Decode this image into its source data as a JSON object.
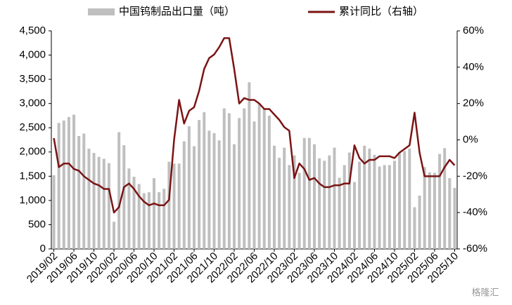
{
  "chart_data": {
    "type": "bar-line",
    "categories": [
      "2019/02",
      null,
      null,
      null,
      "2019/06",
      null,
      null,
      null,
      "2019/10",
      null,
      null,
      null,
      "2020/02",
      null,
      null,
      null,
      "2020/06",
      null,
      null,
      null,
      "2020/10",
      null,
      null,
      null,
      "2021/02",
      null,
      null,
      null,
      "2021/06",
      null,
      null,
      null,
      "2021/10",
      null,
      null,
      null,
      "2022/02",
      null,
      null,
      null,
      "2022/06",
      null,
      null,
      null,
      "2022/10",
      null,
      null,
      null,
      "2023/02",
      null,
      null,
      null,
      "2023/06",
      null,
      null,
      null,
      "2023/10",
      null,
      null,
      null,
      "2024/02",
      null,
      null,
      null,
      "2024/06",
      null,
      null,
      null,
      "2024/10",
      null,
      null,
      null,
      "2025/02",
      null,
      null,
      null,
      "2025/06",
      null,
      null,
      null,
      "2025/10"
    ],
    "series": [
      {
        "name": "中国钨制品出口量（吨）",
        "type": "bar",
        "color": "#bfbfbf",
        "values": [
          1520,
          2600,
          2650,
          2720,
          2770,
          2330,
          2380,
          2070,
          1980,
          1900,
          1860,
          1770,
          560,
          2410,
          2140,
          1660,
          1490,
          1340,
          1150,
          1170,
          1460,
          1170,
          1240,
          1800,
          1760,
          1760,
          2220,
          2530,
          2120,
          2660,
          2820,
          2440,
          2390,
          2240,
          2900,
          2800,
          2160,
          2700,
          2900,
          3440,
          2630,
          3000,
          2900,
          2750,
          2130,
          1880,
          2090,
          1730,
          1930,
          1570,
          2290,
          2290,
          2160,
          1870,
          1820,
          1930,
          2090,
          1470,
          1730,
          1990,
          1380,
          1800,
          2130,
          2070,
          1940,
          1700,
          1730,
          1730,
          1820,
          1990,
          2020,
          2070,
          860,
          1100,
          1690,
          1580,
          1570,
          1960,
          2080,
          1460,
          1260
        ]
      },
      {
        "name": "累计同比（右轴）",
        "type": "line",
        "axis": "y2",
        "color": "#7b1414",
        "values": [
          1,
          -15,
          -13,
          -13,
          -16,
          -17,
          -20,
          -22,
          -24,
          -25,
          -27,
          -27,
          -40,
          -37,
          -26,
          -24,
          -27,
          -31,
          -34,
          -36,
          -35,
          -36,
          -36,
          -33,
          0,
          22,
          9,
          16,
          18,
          27,
          39,
          45,
          47,
          51,
          56,
          56,
          39,
          20,
          23,
          22,
          22,
          20,
          17,
          17,
          14,
          11,
          7,
          5,
          -21,
          -13,
          -16,
          -22,
          -21,
          -24,
          -26,
          -26,
          -25,
          -25,
          -24,
          -24,
          -3,
          -10,
          -13,
          -11,
          -11,
          -9,
          -9,
          -9,
          -10,
          -7,
          -5,
          -3,
          15,
          -7,
          -20,
          -20,
          -20,
          -20,
          -15,
          -11,
          -14
        ]
      }
    ],
    "ylim": [
      0,
      4500
    ],
    "yticks": [
      0,
      500,
      {
        "value": 1000,
        "label": "1,000"
      },
      {
        "value": 1500,
        "label": "1,500"
      },
      {
        "value": 2000,
        "label": "2,000"
      },
      {
        "value": 2500,
        "label": "2,500"
      },
      {
        "value": 3000,
        "label": "3,000"
      },
      {
        "value": 3500,
        "label": "3,500"
      },
      {
        "value": 4000,
        "label": "4,000"
      },
      {
        "value": 4500,
        "label": "4,500"
      }
    ],
    "y2lim": [
      -60,
      60
    ],
    "y2ticks": [
      {
        "value": -60,
        "label": "-60%"
      },
      {
        "value": -40,
        "label": "-40%"
      },
      {
        "value": -20,
        "label": "-20%"
      },
      {
        "value": 0,
        "label": "0%"
      },
      {
        "value": 20,
        "label": "20%"
      },
      {
        "value": 40,
        "label": "40%"
      },
      {
        "value": 60,
        "label": "60%"
      }
    ],
    "watermark": "格隆汇"
  }
}
